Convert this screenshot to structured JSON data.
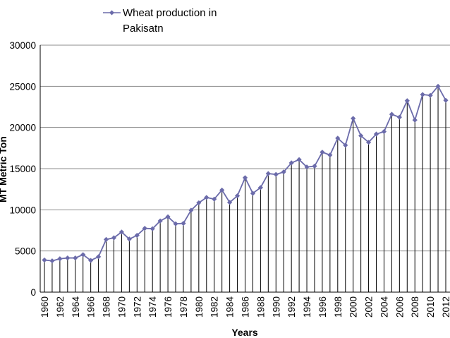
{
  "chart_data": {
    "type": "line",
    "title": "",
    "xlabel": "Years",
    "ylabel": "MT Metric Ton",
    "ylim": [
      0,
      30000
    ],
    "yticks": [
      0,
      5000,
      10000,
      15000,
      20000,
      25000,
      30000
    ],
    "ytick_labels": [
      "0",
      "5000",
      "10000",
      "15000",
      "20000",
      "25000",
      "30000"
    ],
    "xtick_labels": [
      "1960",
      "1962",
      "1964",
      "1966",
      "1968",
      "1970",
      "1972",
      "1974",
      "1976",
      "1978",
      "1980",
      "1982",
      "1984",
      "1986",
      "1988",
      "1990",
      "1992",
      "1994",
      "1996",
      "1998",
      "2000",
      "2002",
      "2004",
      "2006",
      "2008",
      "2010",
      "2012"
    ],
    "grid": "horizontal",
    "drop_lines": true,
    "legend_position": "top",
    "series": [
      {
        "name": "Wheat production in Pakisatn",
        "legend_line1": "Wheat production in",
        "legend_line2": "Pakisatn",
        "color": "#6b6baa",
        "marker": "diamond",
        "x": [
          1960,
          1961,
          1962,
          1963,
          1964,
          1965,
          1966,
          1967,
          1968,
          1969,
          1970,
          1971,
          1972,
          1973,
          1974,
          1975,
          1976,
          1977,
          1978,
          1979,
          1980,
          1981,
          1982,
          1983,
          1984,
          1985,
          1986,
          1987,
          1988,
          1989,
          1990,
          1991,
          1992,
          1993,
          1994,
          1995,
          1996,
          1997,
          1998,
          1999,
          2000,
          2001,
          2002,
          2003,
          2004,
          2005,
          2006,
          2007,
          2008,
          2009,
          2010,
          2011,
          2012
        ],
        "values": [
          3900,
          3800,
          4050,
          4150,
          4150,
          4550,
          3850,
          4300,
          6400,
          6600,
          7300,
          6450,
          6900,
          7750,
          7700,
          8650,
          9150,
          8300,
          8350,
          9950,
          10850,
          11500,
          11300,
          12400,
          10900,
          11700,
          13900,
          12000,
          12700,
          14400,
          14300,
          14600,
          15700,
          16100,
          15200,
          15300,
          17000,
          16650,
          18700,
          17850,
          21100,
          19000,
          18200,
          19200,
          19500,
          21600,
          21250,
          23250,
          20900,
          24000,
          23900,
          25000,
          23300
        ]
      }
    ]
  }
}
